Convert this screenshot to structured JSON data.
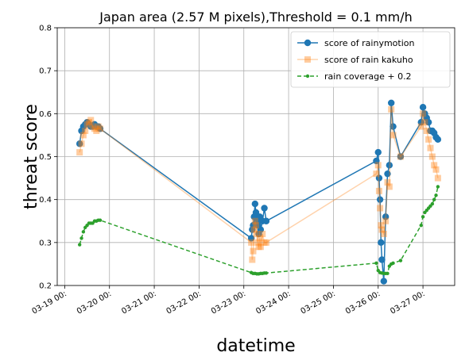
{
  "chart_data": {
    "type": "line",
    "title": "Japan area (2.57 M pixels),Threshold = 0.1 mm/h",
    "xlabel": "datetime",
    "ylabel": "threat score",
    "ylim": [
      0.2,
      0.8
    ],
    "xlim": [
      "03-18 20:00",
      "03-27 17:00"
    ],
    "yticks": [
      "0.2",
      "0.3",
      "0.4",
      "0.5",
      "0.6",
      "0.7",
      "0.8"
    ],
    "xticks": [
      "03-19 00:",
      "03-20 00:",
      "03-21 00:",
      "03-22 00:",
      "03-23 00:",
      "03-24 00:",
      "03-25 00:",
      "03-26 00:",
      "03-27 00:"
    ],
    "grid": true,
    "legend_position": "top-right",
    "colors": {
      "rainymotion": "#1f77b4",
      "kakuho": "#ff7f0e",
      "coverage": "#2ca02c"
    },
    "series": [
      {
        "name": "score of rainymotion",
        "style": "solid-circle",
        "x": [
          "03-19 08:00",
          "03-19 09:00",
          "03-19 10:00",
          "03-19 11:00",
          "03-19 12:00",
          "03-19 13:00",
          "03-19 14:00",
          "03-19 15:00",
          "03-19 16:00",
          "03-19 17:00",
          "03-19 18:00",
          "03-19 19:00",
          "03-23 04:00",
          "03-23 04:30",
          "03-23 05:00",
          "03-23 05:30",
          "03-23 06:00",
          "03-23 06:30",
          "03-23 07:00",
          "03-23 07:30",
          "03-23 08:00",
          "03-23 08:30",
          "03-23 09:00",
          "03-23 10:00",
          "03-23 11:00",
          "03-23 12:00",
          "03-25 23:00",
          "03-26 00:00",
          "03-26 00:30",
          "03-26 01:00",
          "03-26 01:30",
          "03-26 02:00",
          "03-26 03:00",
          "03-26 04:00",
          "03-26 05:00",
          "03-26 06:00",
          "03-26 07:00",
          "03-26 08:00",
          "03-26 12:00",
          "03-26 23:00",
          "03-27 00:00",
          "03-27 01:00",
          "03-27 02:00",
          "03-27 03:00",
          "03-27 04:00",
          "03-27 05:00",
          "03-27 06:00",
          "03-27 07:00",
          "03-27 08:00"
        ],
        "values": [
          0.53,
          0.56,
          0.57,
          0.575,
          0.58,
          0.575,
          0.57,
          0.57,
          0.575,
          0.57,
          0.57,
          0.565,
          0.31,
          0.33,
          0.34,
          0.36,
          0.39,
          0.37,
          0.35,
          0.34,
          0.32,
          0.36,
          0.33,
          0.35,
          0.38,
          0.35,
          0.49,
          0.51,
          0.45,
          0.4,
          0.3,
          0.26,
          0.21,
          0.36,
          0.46,
          0.48,
          0.625,
          0.57,
          0.5,
          0.58,
          0.615,
          0.6,
          0.59,
          0.58,
          0.56,
          0.56,
          0.555,
          0.545,
          0.54
        ]
      },
      {
        "name": "score of rain kakuho",
        "style": "solid-square-faded",
        "x": [
          "03-19 08:00",
          "03-19 09:00",
          "03-19 10:00",
          "03-19 11:00",
          "03-19 12:00",
          "03-19 13:00",
          "03-19 14:00",
          "03-19 15:00",
          "03-19 16:00",
          "03-19 17:00",
          "03-19 18:00",
          "03-19 19:00",
          "03-23 04:00",
          "03-23 04:30",
          "03-23 05:00",
          "03-23 05:30",
          "03-23 06:00",
          "03-23 06:30",
          "03-23 07:00",
          "03-23 07:30",
          "03-23 08:00",
          "03-23 08:30",
          "03-23 09:00",
          "03-23 10:00",
          "03-23 11:00",
          "03-23 12:00",
          "03-25 23:00",
          "03-26 00:00",
          "03-26 00:30",
          "03-26 01:00",
          "03-26 01:30",
          "03-26 02:00",
          "03-26 03:00",
          "03-26 04:00",
          "03-26 05:00",
          "03-26 06:00",
          "03-26 07:00",
          "03-26 08:00",
          "03-26 12:00",
          "03-26 23:00",
          "03-27 00:00",
          "03-27 01:00",
          "03-27 02:00",
          "03-27 03:00",
          "03-27 04:00",
          "03-27 05:00",
          "03-27 06:00",
          "03-27 07:00",
          "03-27 08:00"
        ],
        "values": [
          0.51,
          0.53,
          0.55,
          0.56,
          0.575,
          0.58,
          0.585,
          0.57,
          0.565,
          0.56,
          0.57,
          0.565,
          0.3,
          0.26,
          0.28,
          0.33,
          0.35,
          0.34,
          0.32,
          0.3,
          0.29,
          0.31,
          0.29,
          0.32,
          0.3,
          0.3,
          0.46,
          0.48,
          0.42,
          0.38,
          0.34,
          0.33,
          0.32,
          0.35,
          0.44,
          0.43,
          0.61,
          0.55,
          0.5,
          0.57,
          0.6,
          0.58,
          0.56,
          0.54,
          0.52,
          0.5,
          0.48,
          0.47,
          0.45
        ]
      },
      {
        "name": "rain coverage + 0.2",
        "style": "dashed-dot",
        "x": [
          "03-19 08:00",
          "03-19 09:00",
          "03-19 10:00",
          "03-19 11:00",
          "03-19 12:00",
          "03-19 13:00",
          "03-19 14:00",
          "03-19 15:00",
          "03-19 16:00",
          "03-19 17:00",
          "03-19 18:00",
          "03-19 19:00",
          "03-23 04:00",
          "03-23 05:00",
          "03-23 06:00",
          "03-23 07:00",
          "03-23 08:00",
          "03-23 09:00",
          "03-23 10:00",
          "03-23 11:00",
          "03-23 12:00",
          "03-25 23:00",
          "03-26 00:00",
          "03-26 01:00",
          "03-26 02:00",
          "03-26 03:00",
          "03-26 04:00",
          "03-26 05:00",
          "03-26 06:00",
          "03-26 07:00",
          "03-26 08:00",
          "03-26 12:00",
          "03-26 23:00",
          "03-27 00:00",
          "03-27 01:00",
          "03-27 02:00",
          "03-27 03:00",
          "03-27 04:00",
          "03-27 05:00",
          "03-27 06:00",
          "03-27 07:00",
          "03-27 08:00"
        ],
        "values": [
          0.295,
          0.31,
          0.325,
          0.335,
          0.34,
          0.345,
          0.345,
          0.345,
          0.35,
          0.35,
          0.352,
          0.352,
          0.23,
          0.228,
          0.228,
          0.227,
          0.227,
          0.228,
          0.228,
          0.229,
          0.229,
          0.252,
          0.235,
          0.23,
          0.229,
          0.228,
          0.228,
          0.228,
          0.245,
          0.25,
          0.252,
          0.258,
          0.34,
          0.36,
          0.37,
          0.375,
          0.38,
          0.385,
          0.39,
          0.4,
          0.41,
          0.43
        ]
      }
    ]
  }
}
